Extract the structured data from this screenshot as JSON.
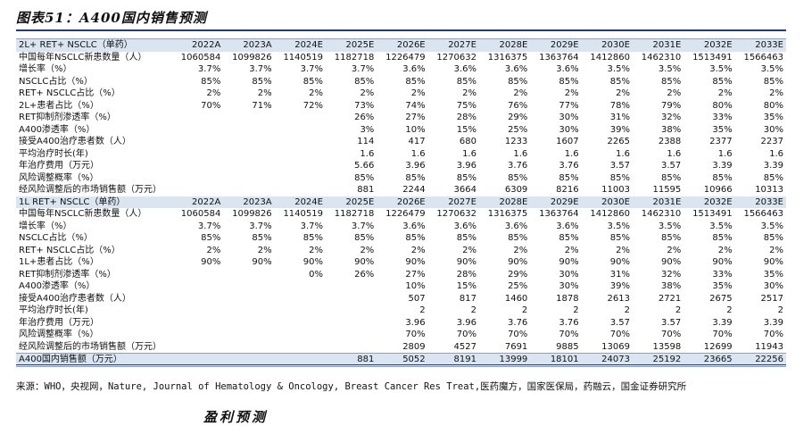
{
  "title": "图表51：A400国内销售预测",
  "years": [
    "2022A",
    "2023A",
    "2024E",
    "2025E",
    "2026E",
    "2027E",
    "2028E",
    "2029E",
    "2030E",
    "2031E",
    "2032E",
    "2033E"
  ],
  "sections": [
    {
      "header": "2L+ RET+ NSCLC（单药）",
      "rows": [
        {
          "label": "中国每年NSCLC新患数量（人）",
          "values": [
            "1060584",
            "1099826",
            "1140519",
            "1182718",
            "1226479",
            "1270632",
            "1316375",
            "1363764",
            "1412860",
            "1462310",
            "1513491",
            "1566463"
          ]
        },
        {
          "label": "增长率（%）",
          "values": [
            "3.7%",
            "3.7%",
            "3.7%",
            "3.7%",
            "3.6%",
            "3.6%",
            "3.6%",
            "3.6%",
            "3.5%",
            "3.5%",
            "3.5%",
            "3.5%"
          ]
        },
        {
          "label": "NSCLC占比（%）",
          "values": [
            "85%",
            "85%",
            "85%",
            "85%",
            "85%",
            "85%",
            "85%",
            "85%",
            "85%",
            "85%",
            "85%",
            "85%"
          ]
        },
        {
          "label": "RET+ NSCLC占比（%）",
          "values": [
            "2%",
            "2%",
            "2%",
            "2%",
            "2%",
            "2%",
            "2%",
            "2%",
            "2%",
            "2%",
            "2%",
            "2%"
          ]
        },
        {
          "label": "2L+患者占比（%）",
          "values": [
            "70%",
            "71%",
            "72%",
            "73%",
            "74%",
            "75%",
            "76%",
            "77%",
            "78%",
            "79%",
            "80%",
            "80%"
          ]
        },
        {
          "label": "RET抑制剂渗透率（%）",
          "values": [
            "",
            "",
            "",
            "26%",
            "27%",
            "28%",
            "29%",
            "30%",
            "31%",
            "32%",
            "33%",
            "35%"
          ]
        },
        {
          "label": "A400渗透率（%）",
          "values": [
            "",
            "",
            "",
            "3%",
            "10%",
            "15%",
            "25%",
            "30%",
            "39%",
            "38%",
            "35%",
            "30%"
          ]
        },
        {
          "label": "接受A400治疗患者数（人）",
          "values": [
            "",
            "",
            "",
            "114",
            "417",
            "680",
            "1233",
            "1607",
            "2265",
            "2388",
            "2377",
            "2237"
          ]
        },
        {
          "label": "平均治疗时长(年)",
          "values": [
            "",
            "",
            "",
            "1.6",
            "1.6",
            "1.6",
            "1.6",
            "1.6",
            "1.6",
            "1.6",
            "1.6",
            "1.6"
          ]
        },
        {
          "label": "年治疗费用（万元）",
          "values": [
            "",
            "",
            "",
            "5.66",
            "3.96",
            "3.96",
            "3.76",
            "3.76",
            "3.57",
            "3.57",
            "3.39",
            "3.39"
          ]
        },
        {
          "label": "风险调整概率（%）",
          "values": [
            "",
            "",
            "",
            "85%",
            "85%",
            "85%",
            "85%",
            "85%",
            "85%",
            "85%",
            "85%",
            "85%"
          ]
        },
        {
          "label": "经风险调整后的市场销售额（万元）",
          "values": [
            "",
            "",
            "",
            "881",
            "2244",
            "3664",
            "6309",
            "8216",
            "11003",
            "11595",
            "10966",
            "10313"
          ]
        }
      ]
    },
    {
      "header": "1L RET+ NSCLC（单药）",
      "rows": [
        {
          "label": "中国每年NSCLC新患数量（人）",
          "values": [
            "1060584",
            "1099826",
            "1140519",
            "1182718",
            "1226479",
            "1270632",
            "1316375",
            "1363764",
            "1412860",
            "1462310",
            "1513491",
            "1566463"
          ]
        },
        {
          "label": "增长率（%）",
          "values": [
            "3.7%",
            "3.7%",
            "3.7%",
            "3.7%",
            "3.6%",
            "3.6%",
            "3.6%",
            "3.6%",
            "3.5%",
            "3.5%",
            "3.5%",
            "3.5%"
          ]
        },
        {
          "label": "NSCLC占比（%）",
          "values": [
            "85%",
            "85%",
            "85%",
            "85%",
            "85%",
            "85%",
            "85%",
            "85%",
            "85%",
            "85%",
            "85%",
            "85%"
          ]
        },
        {
          "label": "RET+ NSCLC占比（%）",
          "values": [
            "2%",
            "2%",
            "2%",
            "2%",
            "2%",
            "2%",
            "2%",
            "2%",
            "2%",
            "2%",
            "2%",
            "2%"
          ]
        },
        {
          "label": "1L+患者占比（%）",
          "values": [
            "90%",
            "90%",
            "90%",
            "90%",
            "90%",
            "90%",
            "90%",
            "90%",
            "90%",
            "90%",
            "90%",
            "90%"
          ]
        },
        {
          "label": "RET抑制剂渗透率（%）",
          "values": [
            "",
            "",
            "0%",
            "26%",
            "27%",
            "28%",
            "29%",
            "30%",
            "31%",
            "32%",
            "33%",
            "35%"
          ]
        },
        {
          "label": "A400渗透率（%）",
          "values": [
            "",
            "",
            "",
            "",
            "10%",
            "15%",
            "25%",
            "30%",
            "39%",
            "38%",
            "35%",
            "30%"
          ]
        },
        {
          "label": "接受A400治疗患者数（人）",
          "values": [
            "",
            "",
            "",
            "",
            "507",
            "817",
            "1460",
            "1878",
            "2613",
            "2721",
            "2675",
            "2517"
          ]
        },
        {
          "label": "平均治疗时长(年)",
          "values": [
            "",
            "",
            "",
            "",
            "2",
            "2",
            "2",
            "2",
            "2",
            "2",
            "2",
            "2"
          ]
        },
        {
          "label": "年治疗费用（万元）",
          "values": [
            "",
            "",
            "",
            "",
            "3.96",
            "3.96",
            "3.76",
            "3.76",
            "3.57",
            "3.57",
            "3.39",
            "3.39"
          ]
        },
        {
          "label": "风险调整概率（%）",
          "values": [
            "",
            "",
            "",
            "",
            "70%",
            "70%",
            "70%",
            "70%",
            "70%",
            "70%",
            "70%",
            "70%"
          ]
        },
        {
          "label": "经风险调整后的市场销售额（万元）",
          "values": [
            "",
            "",
            "",
            "",
            "2809",
            "4527",
            "7691",
            "9885",
            "13069",
            "13598",
            "12699",
            "11943"
          ]
        }
      ]
    }
  ],
  "total": {
    "label": "A400国内销售额（万元）",
    "values": [
      "",
      "",
      "",
      "881",
      "5052",
      "8191",
      "13999",
      "18101",
      "24073",
      "25192",
      "23665",
      "22256"
    ]
  },
  "source": "来源：WHO，央视网，Nature, Journal of Hematology & Oncology, Breast Cancer Res Treat,医药魔方，国家医保局，药融云，国金证券研究所",
  "next_heading": "盈利预测"
}
